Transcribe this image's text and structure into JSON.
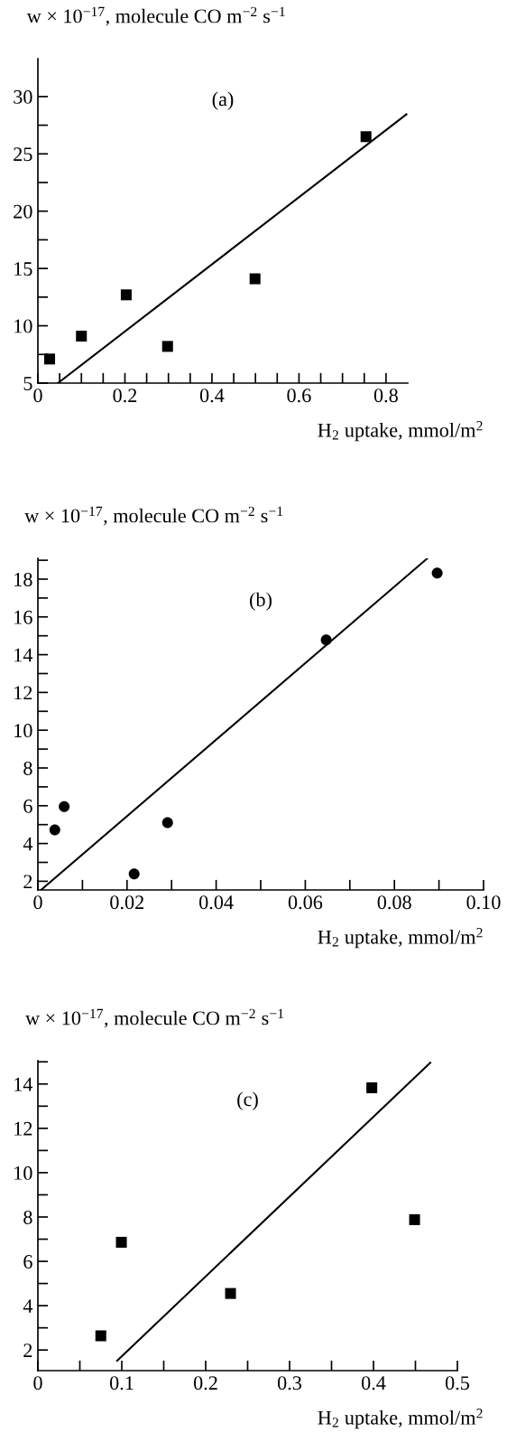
{
  "chart_data": [
    {
      "type": "scatter",
      "ylabel": "w × 10$^{−17}$, molecule CO m$^{−2}$ s$^{−1}$",
      "xlabel": "H$_{2}$ uptake, mmol/m$^{2}$",
      "annotations": [
        "(a)"
      ],
      "xlim": [
        0,
        0.85
      ],
      "ylim": [
        5,
        33.3
      ],
      "xticks": [
        0,
        {
          "value": 0.05,
          "label": null
        },
        {
          "value": 0.1,
          "label": null
        },
        {
          "value": 0.15,
          "label": null
        },
        0.2,
        {
          "value": 0.25,
          "label": null
        },
        {
          "value": 0.3,
          "label": null
        },
        {
          "value": 0.35,
          "label": null
        },
        0.4,
        {
          "value": 0.45,
          "label": null
        },
        {
          "value": 0.5,
          "label": null
        },
        {
          "value": 0.55,
          "label": null
        },
        0.6,
        {
          "value": 0.65,
          "label": null
        },
        {
          "value": 0.7,
          "label": null
        },
        {
          "value": 0.75,
          "label": null
        },
        0.8
      ],
      "yticks": [
        5,
        {
          "value": 7.5,
          "label": null
        },
        10,
        {
          "value": 12.5,
          "label": null
        },
        15,
        {
          "value": 17.5,
          "label": null
        },
        20,
        {
          "value": 22.5,
          "label": null
        },
        25,
        {
          "value": 27.5,
          "label": null
        },
        30
      ],
      "grid": false,
      "legend": false,
      "series": [
        {
          "marker": "square",
          "color": "#000000",
          "x": [
            0.027,
            0.1,
            0.203,
            0.298,
            0.499,
            0.754
          ],
          "values": [
            7.1,
            9.1,
            12.7,
            8.2,
            14.1,
            26.5
          ]
        },
        {
          "type": "line",
          "marker": "none",
          "color": "#000000",
          "x": [
            0.046,
            0.847
          ],
          "values": [
            5,
            28.45
          ]
        }
      ]
    },
    {
      "type": "scatter",
      "ylabel": "w × 10$^{−17}$, molecule CO m$^{−2}$ s$^{−1}$",
      "xlabel": "H$_{2}$ uptake, mmol/m$^{2}$",
      "annotations": [
        "(b)"
      ],
      "xlim": [
        0,
        0.1
      ],
      "ylim": [
        1.54,
        19.1
      ],
      "xticks": [
        0,
        {
          "value": 0.01,
          "label": null
        },
        0.02,
        {
          "value": 0.03,
          "label": null
        },
        0.04,
        {
          "value": 0.05,
          "label": null
        },
        0.06,
        {
          "value": 0.07,
          "label": null
        },
        0.08,
        {
          "value": 0.09,
          "label": null
        },
        {
          "value": 0.1,
          "label": "0.10"
        }
      ],
      "yticks": [
        2,
        {
          "value": 3,
          "label": null
        },
        4,
        {
          "value": 5,
          "label": null
        },
        6,
        {
          "value": 7,
          "label": null
        },
        8,
        {
          "value": 9,
          "label": null
        },
        10,
        {
          "value": 11,
          "label": null
        },
        12,
        {
          "value": 13,
          "label": null
        },
        14,
        {
          "value": 15,
          "label": null
        },
        16,
        {
          "value": 17,
          "label": null
        },
        18,
        {
          "value": 19,
          "label": null
        }
      ],
      "grid": false,
      "legend": false,
      "series": [
        {
          "marker": "circle",
          "color": "#000000",
          "x": [
            0.0038,
            0.0059,
            0.0216,
            0.0291,
            0.0647,
            0.0896
          ],
          "values": [
            4.72,
            5.95,
            2.39,
            5.1,
            14.78,
            18.32
          ]
        },
        {
          "type": "line",
          "marker": "none",
          "color": "#000000",
          "x": [
            0.0007,
            0.0874
          ],
          "values": [
            1.54,
            19.1
          ]
        }
      ]
    },
    {
      "type": "scatter",
      "ylabel": "w × 10$^{−17}$, molecule CO m$^{−2}$ s$^{−1}$",
      "xlabel": "H$_{2}$ uptake, mmol/m$^{2}$",
      "annotations": [
        "(c)"
      ],
      "xlim": [
        0,
        0.5
      ],
      "ylim": [
        1.07,
        15.05
      ],
      "xticks": [
        0,
        {
          "value": 0.05,
          "label": null
        },
        0.1,
        {
          "value": 0.15,
          "label": null
        },
        0.2,
        {
          "value": 0.25,
          "label": null
        },
        0.3,
        {
          "value": 0.35,
          "label": null
        },
        0.4,
        {
          "value": 0.45,
          "label": null
        },
        0.5
      ],
      "yticks": [
        2,
        {
          "value": 3,
          "label": null
        },
        4,
        {
          "value": 5,
          "label": null
        },
        6,
        {
          "value": 7,
          "label": null
        },
        8,
        {
          "value": 9,
          "label": null
        },
        10,
        {
          "value": 11,
          "label": null
        },
        12,
        {
          "value": 13,
          "label": null
        },
        14,
        {
          "value": 15,
          "label": null
        }
      ],
      "grid": false,
      "legend": false,
      "series": [
        {
          "marker": "square",
          "color": "#000000",
          "x": [
            0.075,
            0.0995,
            0.2296,
            0.398,
            0.449
          ],
          "values": [
            2.64,
            6.86,
            4.55,
            13.83,
            7.88
          ]
        },
        {
          "type": "line",
          "marker": "none",
          "color": "#000000",
          "x": [
            0.0945,
            0.4677
          ],
          "values": [
            1.52,
            14.96
          ]
        }
      ]
    }
  ]
}
